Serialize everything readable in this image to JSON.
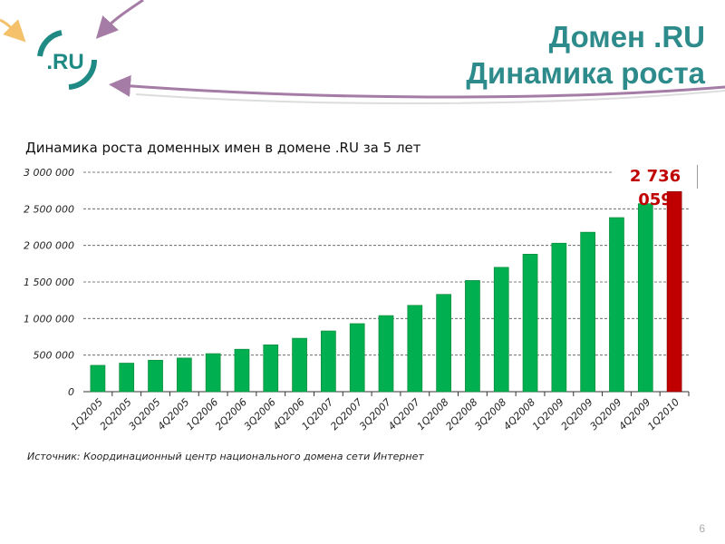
{
  "header": {
    "title_line1": "Домен .RU",
    "title_line2": "Динамика роста",
    "logo_text": ".RU"
  },
  "colors": {
    "accent": "#2e8b8b",
    "bar": "#00b050",
    "highlight_bar": "#c00000",
    "arrow": "#a57ca5"
  },
  "chart_data": {
    "type": "bar",
    "title": "Динамика роста доменных имен в домене .RU за 5 лет",
    "xlabel": "",
    "ylabel": "",
    "ylim": [
      0,
      3000000
    ],
    "yticks": [
      0,
      500000,
      1000000,
      1500000,
      2000000,
      2500000,
      3000000
    ],
    "ytick_labels": [
      "0",
      "500 000",
      "1 000 000",
      "1 500 000",
      "2 000 000",
      "2 500 000",
      "3 000 000"
    ],
    "grid": true,
    "categories": [
      "1Q2005",
      "2Q2005",
      "3Q2005",
      "4Q2005",
      "1Q2006",
      "2Q2006",
      "3Q2006",
      "4Q2006",
      "1Q2007",
      "2Q2007",
      "3Q2007",
      "4Q2007",
      "1Q2008",
      "2Q2008",
      "3Q2008",
      "4Q2008",
      "1Q2009",
      "2Q2009",
      "3Q2009",
      "4Q2009",
      "1Q2010"
    ],
    "values": [
      360000,
      390000,
      430000,
      460000,
      520000,
      580000,
      640000,
      730000,
      830000,
      930000,
      1040000,
      1180000,
      1330000,
      1520000,
      1700000,
      1880000,
      2030000,
      2180000,
      2380000,
      2570000,
      2736059
    ],
    "highlight_index": 20,
    "annotation": "2 736 059"
  },
  "source": "Источник: Координационный центр национального домена сети Интернет",
  "page_number": "6"
}
